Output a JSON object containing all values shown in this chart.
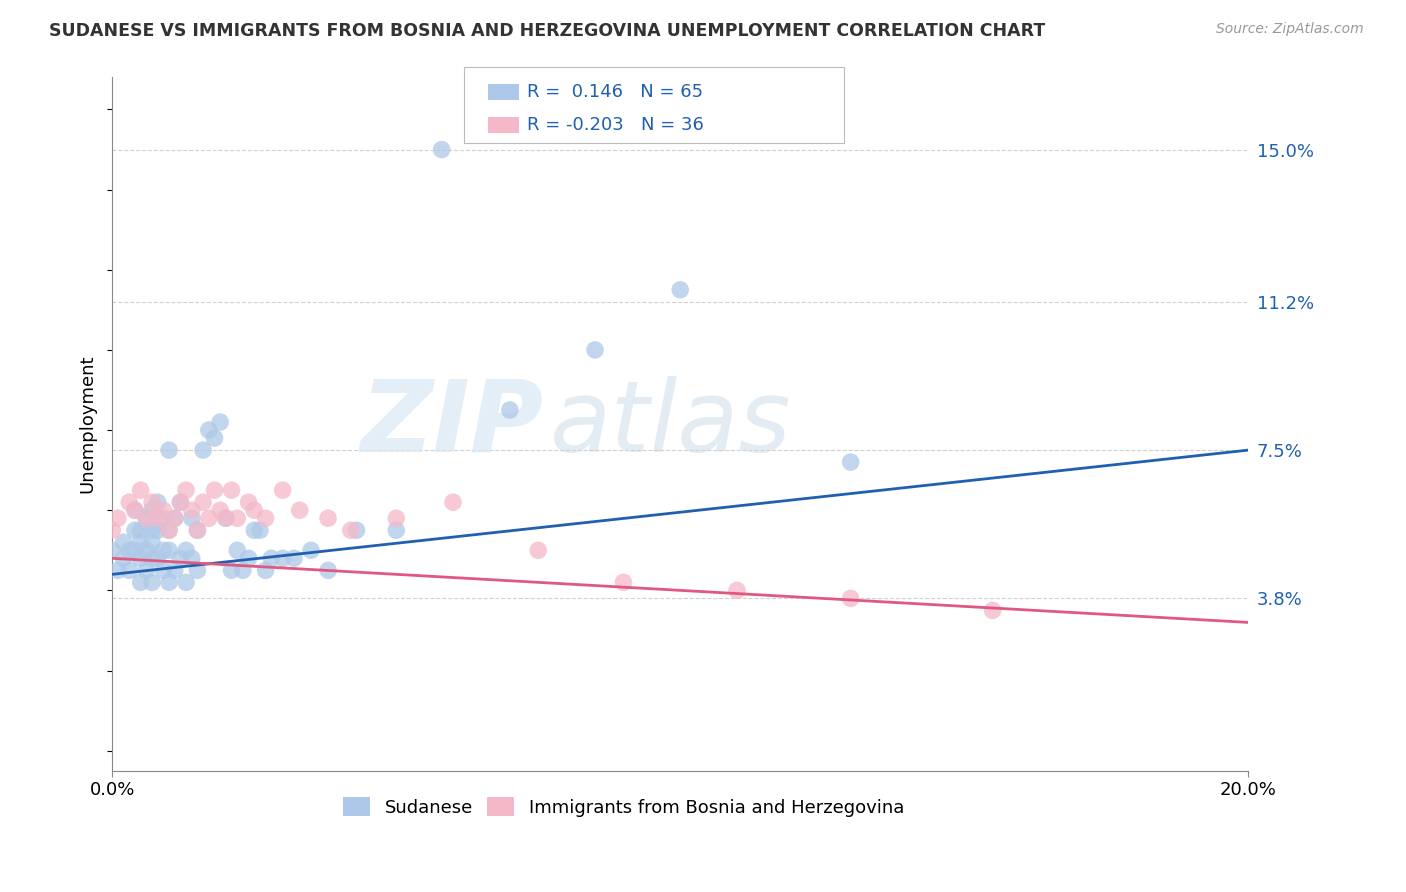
{
  "title": "SUDANESE VS IMMIGRANTS FROM BOSNIA AND HERZEGOVINA UNEMPLOYMENT CORRELATION CHART",
  "source": "Source: ZipAtlas.com",
  "ylabel": "Unemployment",
  "xlim": [
    0.0,
    0.2
  ],
  "ylim": [
    -0.005,
    0.168
  ],
  "yticks": [
    0.038,
    0.075,
    0.112,
    0.15
  ],
  "ytick_labels": [
    "3.8%",
    "7.5%",
    "11.2%",
    "15.0%"
  ],
  "xticks": [
    0.0,
    0.2
  ],
  "xtick_labels": [
    "0.0%",
    "20.0%"
  ],
  "legend1_label": "Sudanese",
  "legend2_label": "Immigrants from Bosnia and Herzegovina",
  "r1": "0.146",
  "n1": "65",
  "r2": "-0.203",
  "n2": "36",
  "color1": "#adc8e8",
  "color2": "#f4b8c8",
  "line_color1": "#2060b0",
  "line_color2": "#e05880",
  "watermark_zip": "ZIP",
  "watermark_atlas": "atlas",
  "background_color": "#ffffff",
  "grid_color": "#d0d0d0",
  "sudanese_x": [
    0.0,
    0.001,
    0.002,
    0.002,
    0.003,
    0.003,
    0.004,
    0.004,
    0.004,
    0.005,
    0.005,
    0.005,
    0.005,
    0.006,
    0.006,
    0.006,
    0.007,
    0.007,
    0.007,
    0.007,
    0.007,
    0.008,
    0.008,
    0.008,
    0.009,
    0.009,
    0.009,
    0.01,
    0.01,
    0.01,
    0.01,
    0.011,
    0.011,
    0.012,
    0.012,
    0.013,
    0.013,
    0.014,
    0.014,
    0.015,
    0.015,
    0.016,
    0.017,
    0.018,
    0.019,
    0.02,
    0.021,
    0.022,
    0.023,
    0.024,
    0.025,
    0.026,
    0.027,
    0.028,
    0.03,
    0.032,
    0.035,
    0.038,
    0.043,
    0.05,
    0.058,
    0.07,
    0.085,
    0.1,
    0.13
  ],
  "sudanese_y": [
    0.05,
    0.045,
    0.048,
    0.052,
    0.045,
    0.05,
    0.05,
    0.055,
    0.06,
    0.042,
    0.048,
    0.052,
    0.055,
    0.045,
    0.05,
    0.058,
    0.042,
    0.048,
    0.052,
    0.055,
    0.06,
    0.048,
    0.055,
    0.062,
    0.045,
    0.05,
    0.058,
    0.042,
    0.05,
    0.055,
    0.075,
    0.045,
    0.058,
    0.048,
    0.062,
    0.042,
    0.05,
    0.048,
    0.058,
    0.045,
    0.055,
    0.075,
    0.08,
    0.078,
    0.082,
    0.058,
    0.045,
    0.05,
    0.045,
    0.048,
    0.055,
    0.055,
    0.045,
    0.048,
    0.048,
    0.048,
    0.05,
    0.045,
    0.055,
    0.055,
    0.15,
    0.085,
    0.1,
    0.115,
    0.072
  ],
  "bosnia_x": [
    0.0,
    0.001,
    0.003,
    0.004,
    0.005,
    0.006,
    0.007,
    0.008,
    0.009,
    0.01,
    0.011,
    0.012,
    0.013,
    0.014,
    0.015,
    0.016,
    0.017,
    0.018,
    0.019,
    0.02,
    0.021,
    0.022,
    0.024,
    0.025,
    0.027,
    0.03,
    0.033,
    0.038,
    0.042,
    0.05,
    0.06,
    0.075,
    0.09,
    0.11,
    0.13,
    0.155
  ],
  "bosnia_y": [
    0.055,
    0.058,
    0.062,
    0.06,
    0.065,
    0.058,
    0.062,
    0.058,
    0.06,
    0.055,
    0.058,
    0.062,
    0.065,
    0.06,
    0.055,
    0.062,
    0.058,
    0.065,
    0.06,
    0.058,
    0.065,
    0.058,
    0.062,
    0.06,
    0.058,
    0.065,
    0.06,
    0.058,
    0.055,
    0.058,
    0.062,
    0.05,
    0.042,
    0.04,
    0.038,
    0.035
  ]
}
